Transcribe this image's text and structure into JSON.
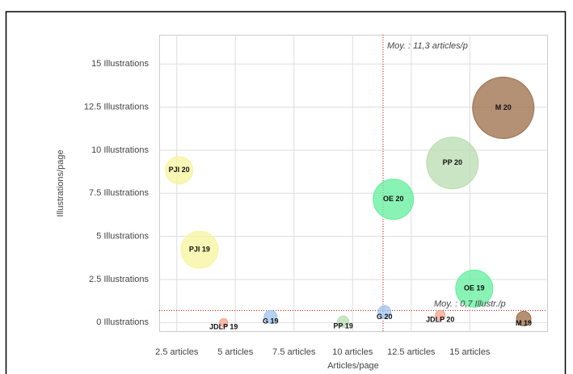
{
  "chart_data": {
    "type": "bubble",
    "x_label": "Articles/page",
    "y_label": "Illustrations/page",
    "xlim": [
      1.75,
      18.3
    ],
    "ylim": [
      -0.5,
      16.7
    ],
    "xticks": [
      {
        "value": 2.5,
        "label": "2.5 articles"
      },
      {
        "value": 5,
        "label": "5 articles"
      },
      {
        "value": 7.5,
        "label": "7.5 articles"
      },
      {
        "value": 10,
        "label": "10 articles"
      },
      {
        "value": 12.5,
        "label": "12.5 articles"
      },
      {
        "value": 15,
        "label": "15 articles"
      }
    ],
    "yticks": [
      {
        "value": 0,
        "label": "0 Illustrations"
      },
      {
        "value": 2.5,
        "label": "2.5 Illustrations"
      },
      {
        "value": 5,
        "label": "5 Illustrations"
      },
      {
        "value": 7.5,
        "label": "7.5 Illustrations"
      },
      {
        "value": 10,
        "label": "10 Illustrations"
      },
      {
        "value": 12.5,
        "label": "12.5 Illustrations"
      },
      {
        "value": 15,
        "label": "15 Illustrations"
      }
    ],
    "grid": true,
    "x_average": {
      "value": 11.3,
      "label": "Moy. : 11,3 articles/p"
    },
    "y_average": {
      "value": 0.7,
      "label": "Moy. : 0,7 Illustr./p"
    },
    "points": [
      {
        "label": "PJI 20",
        "x": 2.6,
        "y": 8.84,
        "size": 17,
        "color": "#f7f49c"
      },
      {
        "label": "PJI 19",
        "x": 3.47,
        "y": 4.23,
        "size": 23,
        "color": "#f7f49c"
      },
      {
        "label": "JDLP 19",
        "x": 4.5,
        "y": 0,
        "size": 5,
        "color": "#f4a38a"
      },
      {
        "label": "G 19",
        "x": 6.5,
        "y": 0.33,
        "size": 8,
        "color": "#9cc3ee"
      },
      {
        "label": "PP 19",
        "x": 9.6,
        "y": 0.05,
        "size": 7,
        "color": "#b8dcb0"
      },
      {
        "label": "G 20",
        "x": 11.36,
        "y": 0.6,
        "size": 8,
        "color": "#9cc3ee"
      },
      {
        "label": "JDLP 20",
        "x": 13.74,
        "y": 0.42,
        "size": 6,
        "color": "#f4a38a"
      },
      {
        "label": "OE 20",
        "x": 11.74,
        "y": 7.15,
        "size": 25,
        "color": "#62ef9c"
      },
      {
        "label": "PP 20",
        "x": 14.26,
        "y": 9.26,
        "size": 32,
        "color": "#b8dcb0"
      },
      {
        "label": "M 20",
        "x": 16.43,
        "y": 12.46,
        "size": 38,
        "color": "#9b6b47"
      },
      {
        "label": "OE 19",
        "x": 15.19,
        "y": 1.97,
        "size": 23,
        "color": "#62ef9c"
      },
      {
        "label": "M 19",
        "x": 17.3,
        "y": 0.23,
        "size": 9,
        "color": "#9b6b47"
      }
    ]
  }
}
